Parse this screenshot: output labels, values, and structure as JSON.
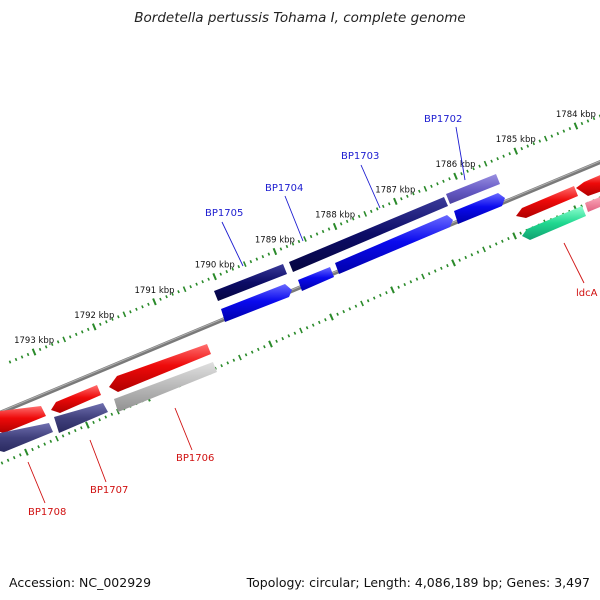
{
  "title": "Bordetella pertussis Tohama I, complete genome",
  "footer": {
    "accession": "Accession: NC_002929",
    "summary": "Topology: circular; Length: 4,086,189 bp; Genes: 3,497"
  },
  "colors": {
    "backbone": "#808080",
    "tick": "#2a8a2a",
    "label_forward": "#1c1cd0",
    "label_reverse": "#d01010",
    "forward_gene": "#0a0aee",
    "reverse_gene": "#ee0a0a"
  },
  "ticks": [
    {
      "kbp": 1784,
      "label": "1784 kbp"
    },
    {
      "kbp": 1785,
      "label": "1785 kbp"
    },
    {
      "kbp": 1786,
      "label": "1786 kbp"
    },
    {
      "kbp": 1787,
      "label": "1787 kbp"
    },
    {
      "kbp": 1788,
      "label": "1788 kbp"
    },
    {
      "kbp": 1789,
      "label": "1789 kbp"
    },
    {
      "kbp": 1790,
      "label": "1790 kbp"
    },
    {
      "kbp": 1791,
      "label": "1791 kbp"
    },
    {
      "kbp": 1792,
      "label": "1792 kbp"
    },
    {
      "kbp": 1793,
      "label": "1793 kbp"
    }
  ],
  "gene_labels": [
    {
      "name": "BP1702",
      "strand": "forward"
    },
    {
      "name": "BP1703",
      "strand": "forward"
    },
    {
      "name": "BP1704",
      "strand": "forward"
    },
    {
      "name": "BP1705",
      "strand": "forward"
    },
    {
      "name": "ldcA",
      "strand": "reverse"
    },
    {
      "name": "BP1706",
      "strand": "reverse"
    },
    {
      "name": "BP1707",
      "strand": "reverse"
    },
    {
      "name": "BP1708",
      "strand": "reverse"
    }
  ]
}
